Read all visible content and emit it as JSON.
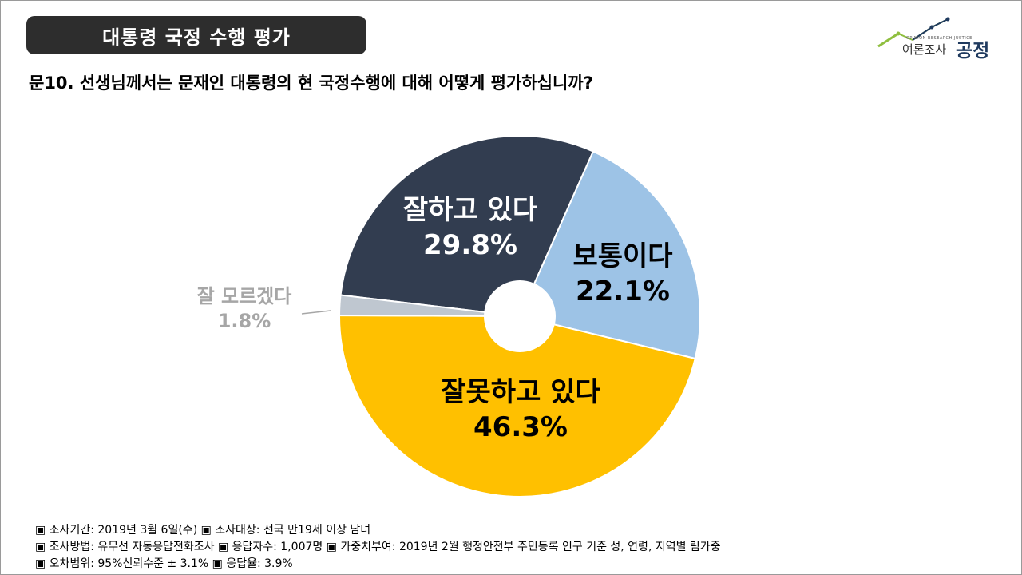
{
  "header": {
    "title": "대통령 국정 수행 평가",
    "question": "문10. 선생님께서는 문재인 대통령의 현 국정수행에 대해 어떻게 평가하십니까?"
  },
  "logo": {
    "tagline": "OPINION RESEARCH JUSTICE",
    "sub": "여론조사",
    "main": "공정",
    "icon": "trend-line-icon"
  },
  "chart_data": {
    "type": "pie",
    "donut": true,
    "slices": [
      {
        "label": "잘하고 있다",
        "value": 29.8,
        "value_label": "29.8%",
        "color": "#323d50"
      },
      {
        "label": "보통이다",
        "value": 22.1,
        "value_label": "22.1%",
        "color": "#9dc3e6"
      },
      {
        "label": "잘못하고 있다",
        "value": 46.3,
        "value_label": "46.3%",
        "color": "#ffc000"
      },
      {
        "label": "잘 모르겠다",
        "value": 1.8,
        "value_label": "1.8%",
        "color": "#bfc7d0"
      }
    ]
  },
  "footer": {
    "line1": "▣ 조사기간: 2019년 3월 6일(수) ▣ 조사대상: 전국 만19세 이상 남녀",
    "line2": "▣ 조사방법: 유무선 자동응답전화조사 ▣ 응답자수: 1,007명 ▣ 가중치부여: 2019년 2월 행정안전부 주민등록 인구 기준 성, 연령, 지역별 림가중",
    "line3": "▣ 오차범위: 95%신뢰수준 ± 3.1% ▣ 응답율: 3.9%"
  }
}
